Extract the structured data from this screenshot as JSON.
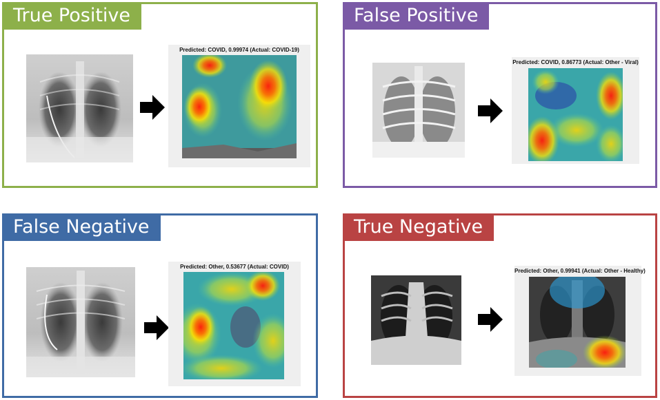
{
  "panels": {
    "tp": {
      "label": "True Positive",
      "caption": "Predicted: COVID, 0.99974 (Actual: COVID-19)",
      "color": "#8db04a"
    },
    "fp": {
      "label": "False Positive",
      "caption": "Predicted: COVID, 0.86773 (Actual: Other - Viral)",
      "color": "#7b5aa6"
    },
    "fn": {
      "label": "False Negative",
      "caption": "Predicted: Other, 0.53677 (Actual: COVID)",
      "color": "#3f6ba5"
    },
    "tn": {
      "label": "True Negative",
      "caption": "Predicted: Other, 0.99941 (Actual: Other - Healthy)",
      "color": "#b94343"
    }
  },
  "icons": [
    "right-arrow-icon"
  ]
}
